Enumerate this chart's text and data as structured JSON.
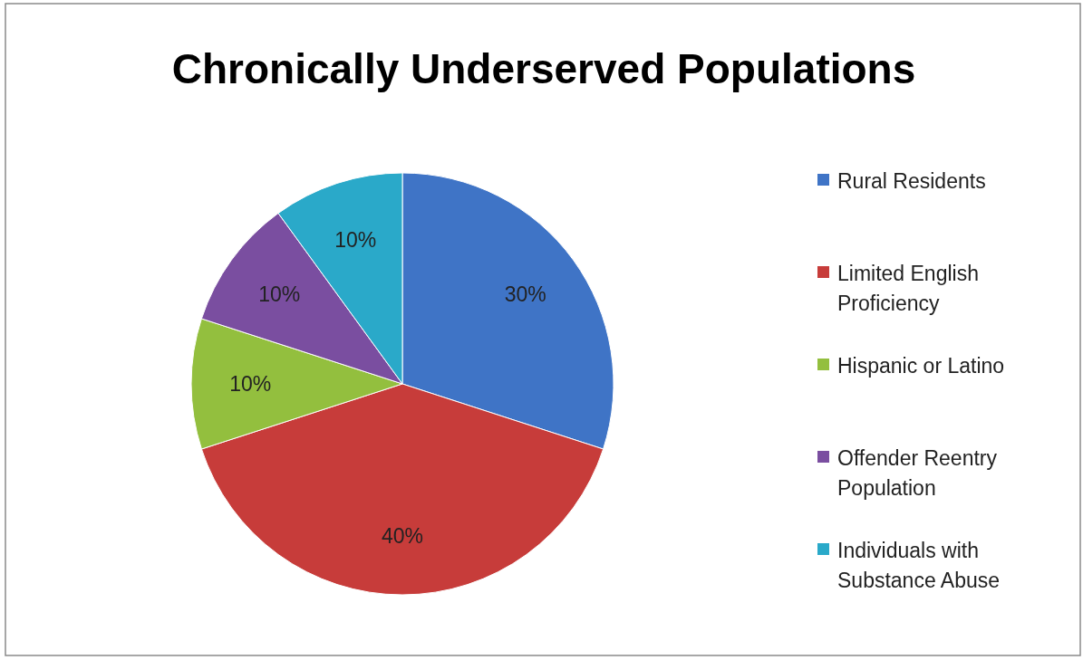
{
  "chart_data": {
    "type": "pie",
    "title": "Chronically Underserved Populations",
    "categories": [
      "Rural Residents",
      "Limited English Proficiency",
      "Hispanic or Latino",
      "Offender Reentry Population",
      "Individuals with Substance Abuse"
    ],
    "values": [
      30,
      40,
      10,
      10,
      10
    ],
    "value_labels": [
      "30%",
      "40%",
      "10%",
      "10%",
      "10%"
    ],
    "colors": [
      "#3f74c6",
      "#c73c3a",
      "#93bf3e",
      "#7a4ea0",
      "#2aa9c9"
    ],
    "legend": "right"
  }
}
